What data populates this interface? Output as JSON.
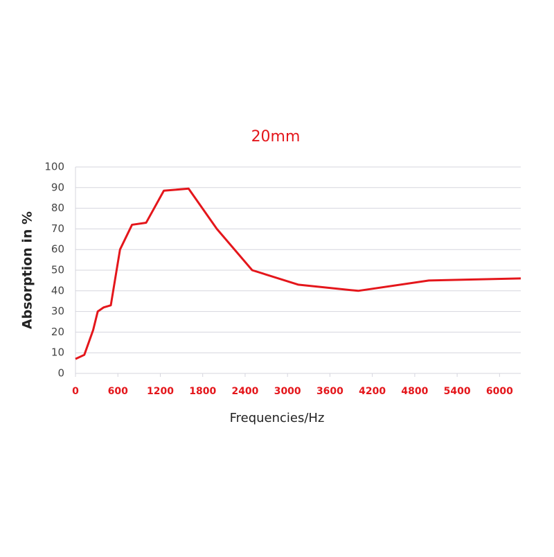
{
  "chart_data": {
    "type": "line",
    "title": "20mm",
    "x_label": "Frequencies/Hz",
    "y_label": "Absorption in %",
    "x": [
      0,
      125,
      250,
      315,
      400,
      500,
      630,
      800,
      1000,
      1250,
      1600,
      2000,
      2500,
      3150,
      4000,
      5000,
      6300
    ],
    "series": [
      {
        "name": "20mm",
        "color": "#e4161b",
        "values": [
          7,
          9,
          21,
          30,
          32,
          33,
          60,
          72,
          73,
          88.5,
          89.5,
          70,
          50,
          43,
          40,
          45,
          46
        ]
      }
    ],
    "xlim": [
      0,
      6300
    ],
    "xticks": [
      0,
      600,
      1200,
      1800,
      2400,
      3000,
      3600,
      4200,
      4800,
      5400,
      6000
    ],
    "ylim": [
      0,
      100
    ],
    "yticks": [
      0,
      10,
      20,
      30,
      40,
      50,
      60,
      70,
      80,
      90,
      100
    ],
    "grid": true
  }
}
